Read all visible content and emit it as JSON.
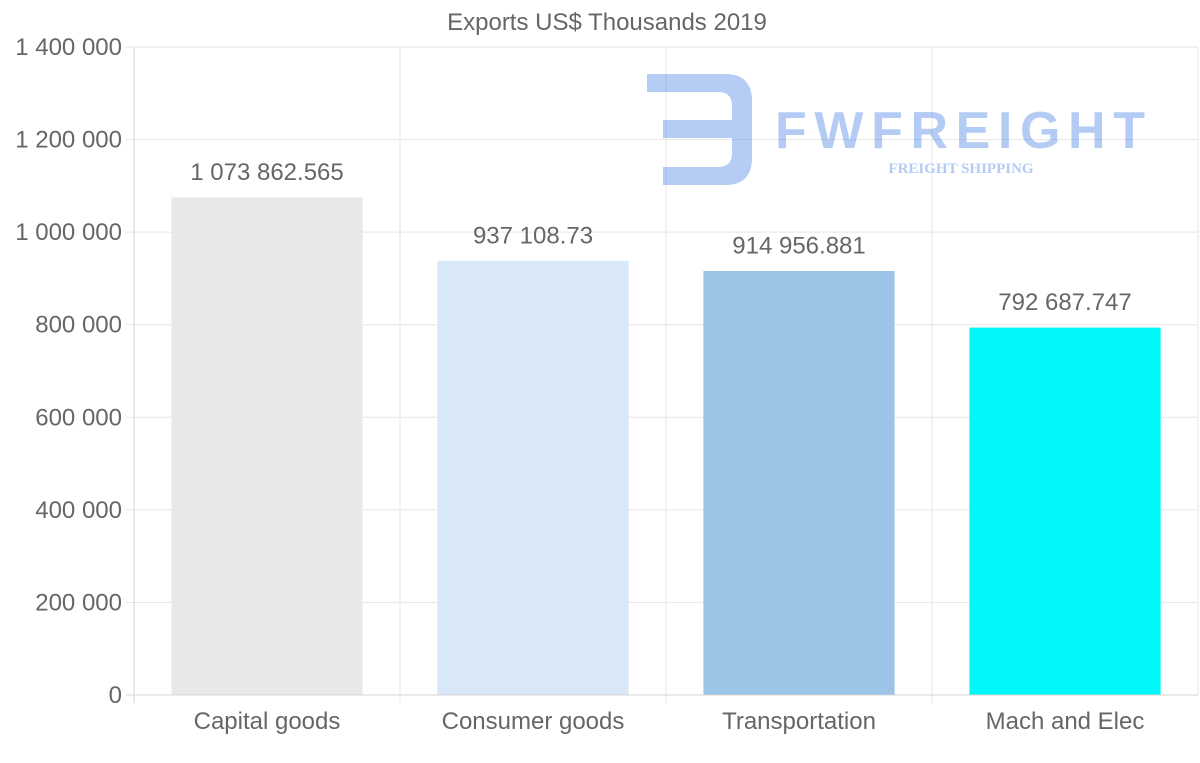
{
  "chart_data": {
    "type": "bar",
    "title": "Exports US$ Thousands 2019",
    "categories": [
      "Capital goods",
      "Consumer goods",
      "Transportation",
      "Mach and Elec"
    ],
    "values": [
      1073862.565,
      937108.73,
      914956.881,
      792687.747
    ],
    "value_labels": [
      "1 073 862.565",
      "937 108.73",
      "914 956.881",
      "792 687.747"
    ],
    "colors": [
      "#e8e8e8",
      "#d8e8f8",
      "#9cc4e6",
      "#00f8f8"
    ],
    "xlabel": "",
    "ylabel": "",
    "ylim": [
      0,
      1400000
    ],
    "yticks": [
      0,
      200000,
      400000,
      600000,
      800000,
      1000000,
      1200000,
      1400000
    ],
    "ytick_labels": [
      "0",
      "200 000",
      "400 000",
      "600 000",
      "800 000",
      "1 000 000",
      "1 200 000",
      "1 400 000"
    ],
    "grid": true,
    "legend": "none"
  },
  "watermark": {
    "brand": "FWFREIGHT",
    "tagline": "FREIGHT SHIPPING",
    "color": "#5a8ee8"
  }
}
